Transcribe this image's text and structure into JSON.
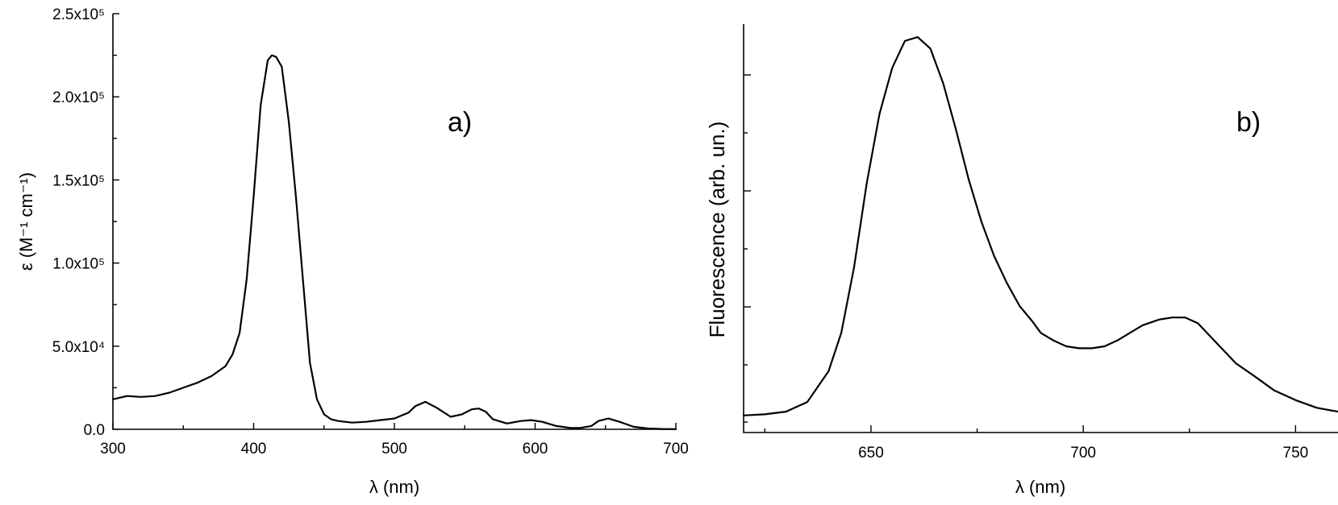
{
  "chart_data": [
    {
      "type": "line",
      "panel_label": "a)",
      "xlabel": "λ (nm)",
      "ylabel": "ε (M⁻¹ cm⁻¹)",
      "xlim": [
        300,
        700
      ],
      "ylim": [
        0,
        250000
      ],
      "x_ticks": [
        300,
        400,
        500,
        600,
        700
      ],
      "y_ticks": [
        0,
        50000,
        100000,
        150000,
        200000,
        250000
      ],
      "x_tick_labels": [
        "300",
        "400",
        "500",
        "600",
        "700"
      ],
      "y_tick_labels": [
        "0.0",
        "5.0x10⁴",
        "1.0x10⁵",
        "1.5x10⁵",
        "2.0x10⁵",
        "2.5x10⁵"
      ],
      "grid": false,
      "series": [
        {
          "x": [
            300,
            310,
            320,
            330,
            340,
            350,
            360,
            370,
            380,
            385,
            390,
            395,
            400,
            405,
            410,
            413,
            416,
            420,
            425,
            430,
            435,
            440,
            445,
            450,
            455,
            460,
            470,
            480,
            490,
            500,
            510,
            515,
            522,
            530,
            540,
            548,
            555,
            560,
            565,
            570,
            580,
            590,
            597,
            605,
            615,
            625,
            632,
            640,
            645,
            652,
            660,
            670,
            680,
            690,
            700
          ],
          "y": [
            18000,
            20000,
            19500,
            20000,
            22000,
            25000,
            28000,
            32000,
            38000,
            45000,
            58000,
            90000,
            140000,
            195000,
            222000,
            225000,
            224000,
            218000,
            185000,
            140000,
            90000,
            40000,
            18000,
            9000,
            6000,
            5000,
            4000,
            4500,
            5500,
            6500,
            10000,
            14000,
            16500,
            13000,
            7500,
            9000,
            12000,
            12500,
            10500,
            6000,
            3500,
            5000,
            5500,
            4500,
            2000,
            800,
            800,
            2000,
            5000,
            6500,
            4500,
            1500,
            500,
            200,
            100
          ]
        }
      ]
    },
    {
      "type": "line",
      "panel_label": "b)",
      "xlabel": "λ  (nm)",
      "ylabel": "Fluorescence  (arb. un.)",
      "xlim": [
        620,
        760
      ],
      "ylim": [
        0,
        1
      ],
      "x_ticks": [
        650,
        700,
        750
      ],
      "x_tick_labels": [
        "650",
        "700",
        "750"
      ],
      "grid": false,
      "series": [
        {
          "x": [
            620,
            625,
            630,
            635,
            640,
            643,
            646,
            649,
            652,
            655,
            658,
            661,
            664,
            667,
            670,
            673,
            676,
            679,
            682,
            685,
            688,
            690,
            693,
            696,
            699,
            702,
            705,
            708,
            711,
            714,
            718,
            721,
            724,
            727,
            730,
            733,
            736,
            740,
            745,
            750,
            755,
            760
          ],
          "y": [
            0.015,
            0.018,
            0.025,
            0.05,
            0.13,
            0.23,
            0.4,
            0.62,
            0.8,
            0.92,
            0.99,
            1.0,
            0.97,
            0.88,
            0.76,
            0.63,
            0.52,
            0.43,
            0.36,
            0.3,
            0.26,
            0.23,
            0.21,
            0.195,
            0.19,
            0.19,
            0.195,
            0.21,
            0.23,
            0.25,
            0.265,
            0.27,
            0.27,
            0.255,
            0.22,
            0.185,
            0.15,
            0.12,
            0.08,
            0.055,
            0.035,
            0.025
          ]
        }
      ]
    }
  ]
}
